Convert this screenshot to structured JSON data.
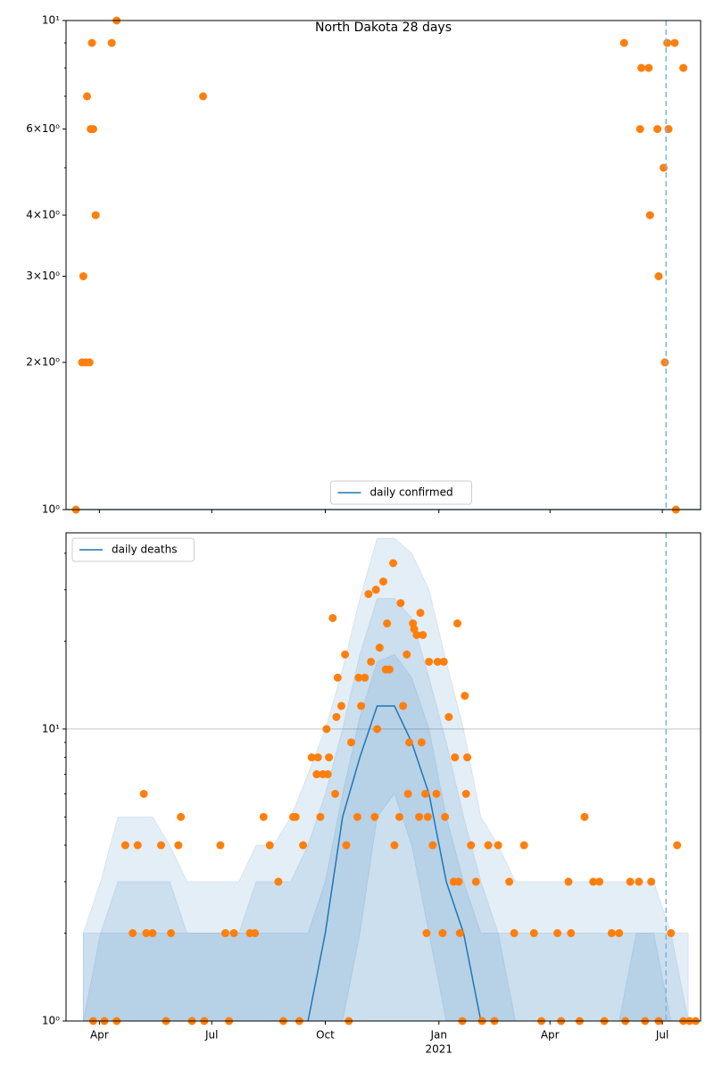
{
  "chart_data": [
    {
      "type": "line",
      "title": "North Dakota 28 days",
      "yscale": "log",
      "grid": false,
      "legend": "lower center",
      "xlim": [
        "2020-03-05",
        "2021-08-01"
      ],
      "ylim": [
        1,
        10
      ],
      "xticks": [
        "2020-04-01",
        "2020-07-01",
        "2020-10-01",
        "2021-01-01",
        "2021-04-01",
        "2021-07-01"
      ],
      "yticks": [
        {
          "value": 1,
          "label": "10⁰"
        },
        {
          "value": 2,
          "label": "2×10⁰"
        },
        {
          "value": 3,
          "label": "3×10⁰"
        },
        {
          "value": 4,
          "label": "4×10⁰"
        },
        {
          "value": 6,
          "label": "6×10⁰"
        },
        {
          "value": 10,
          "label": "10¹"
        }
      ],
      "yminor": [
        5,
        7,
        8,
        9
      ],
      "vline": "2021-07-04",
      "vline_color": "#7fb2dc",
      "series": [
        {
          "name": "daily confirmed",
          "color": "#1f77b4",
          "x": [
            "2020-03-05",
            "2021-08-01"
          ],
          "values": [
            1,
            1
          ]
        }
      ],
      "scatter": {
        "color": "#ff7f0e",
        "x": [
          "2020-03-13",
          "2020-03-18",
          "2020-03-19",
          "2020-03-21",
          "2020-03-22",
          "2020-03-24",
          "2020-03-25",
          "2020-03-26",
          "2020-03-27",
          "2020-03-29",
          "2020-04-11",
          "2020-04-15",
          "2020-06-24",
          "2021-05-31",
          "2021-06-13",
          "2021-06-14",
          "2021-06-20",
          "2021-06-21",
          "2021-06-27",
          "2021-06-28",
          "2021-07-02",
          "2021-07-03",
          "2021-07-05",
          "2021-07-06",
          "2021-07-11",
          "2021-07-12",
          "2021-07-18"
        ],
        "values": [
          1,
          2,
          3,
          2,
          7,
          2,
          6,
          9,
          6,
          4,
          9,
          10,
          7,
          9,
          6,
          8,
          8,
          4,
          6,
          3,
          5,
          2,
          9,
          6,
          9,
          1,
          8
        ]
      }
    },
    {
      "type": "line",
      "yscale": "log",
      "grid": true,
      "legend": "upper left",
      "xlim": [
        "2020-03-05",
        "2021-08-01"
      ],
      "ylim": [
        1,
        47
      ],
      "xticks": [
        {
          "value": "2020-04-01",
          "label": "Apr"
        },
        {
          "value": "2020-07-01",
          "label": "Jul"
        },
        {
          "value": "2020-10-01",
          "label": "Oct"
        },
        {
          "value": "2021-01-01",
          "label": "Jan",
          "label2": "2021"
        },
        {
          "value": "2021-04-01",
          "label": "Apr"
        },
        {
          "value": "2021-07-01",
          "label": "Jul"
        }
      ],
      "yticks": [
        {
          "value": 1,
          "label": "10⁰"
        },
        {
          "value": 10,
          "label": "10¹"
        }
      ],
      "yminor": [
        2,
        3,
        4,
        5,
        6,
        7,
        8,
        9,
        20,
        30,
        40
      ],
      "vline": "2021-07-04",
      "vline_color": "#7fb2dc",
      "band_x": [
        "2020-03-19",
        "2020-04-02",
        "2020-04-16",
        "2020-04-30",
        "2020-05-14",
        "2020-05-28",
        "2020-06-11",
        "2020-06-25",
        "2020-07-09",
        "2020-07-23",
        "2020-08-06",
        "2020-08-20",
        "2020-09-03",
        "2020-09-17",
        "2020-10-01",
        "2020-10-15",
        "2020-10-29",
        "2020-11-12",
        "2020-11-26",
        "2020-12-10",
        "2020-12-24",
        "2021-01-07",
        "2021-01-21",
        "2021-02-04",
        "2021-02-18",
        "2021-03-04",
        "2021-03-18",
        "2021-04-01",
        "2021-04-15",
        "2021-04-29",
        "2021-05-13",
        "2021-05-27",
        "2021-06-10",
        "2021-06-24",
        "2021-07-08",
        "2021-07-22"
      ],
      "bands": [
        {
          "color": "#1f77b4",
          "lower": [
            1,
            1,
            1,
            1,
            1,
            1,
            1,
            1,
            1,
            1,
            1,
            1,
            1,
            1,
            1,
            1,
            1,
            1,
            1,
            1,
            1,
            1,
            1,
            1,
            1,
            1,
            1,
            1,
            1,
            1,
            1,
            1,
            1,
            1,
            1,
            1
          ],
          "upper": [
            2,
            3,
            5,
            5,
            5,
            4,
            3,
            3,
            3,
            3,
            4,
            4,
            5,
            7,
            10,
            16,
            28,
            45,
            45,
            40,
            30,
            17,
            10,
            5,
            4,
            3,
            3,
            3,
            3,
            3,
            3,
            3,
            3,
            3,
            2,
            2
          ]
        },
        {
          "color": "#1f77b4",
          "lower": [
            1,
            1,
            1,
            1,
            1,
            1,
            1,
            1,
            1,
            1,
            1,
            1,
            1,
            1,
            1,
            1,
            1,
            1,
            1,
            1,
            1,
            1,
            1,
            1,
            1,
            1,
            1,
            1,
            1,
            1,
            1,
            1,
            1,
            1,
            1,
            1
          ],
          "upper": [
            2,
            2,
            3,
            3,
            3,
            3,
            2,
            2,
            2,
            2,
            3,
            3,
            3,
            4,
            6,
            10,
            18,
            28,
            28,
            24,
            15,
            9,
            5,
            3,
            2,
            2,
            2,
            2,
            2,
            2,
            2,
            2,
            2,
            2,
            2,
            1
          ]
        },
        {
          "color": "#1f77b4",
          "lower": [
            1,
            1,
            1,
            1,
            1,
            1,
            1,
            1,
            1,
            1,
            1,
            1,
            1,
            1,
            1,
            1,
            2,
            5,
            6,
            4,
            2,
            1,
            1,
            1,
            1,
            1,
            1,
            1,
            1,
            1,
            1,
            1,
            1,
            1,
            1,
            1
          ],
          "upper": [
            1,
            2,
            2,
            2,
            2,
            2,
            2,
            2,
            2,
            2,
            2,
            2,
            2,
            2,
            3,
            6,
            11,
            17,
            18,
            15,
            10,
            5,
            3,
            2,
            2,
            1,
            1,
            1,
            1,
            1,
            1,
            1,
            2,
            2,
            1,
            1
          ]
        }
      ],
      "series": [
        {
          "name": "daily deaths",
          "color": "#1f77b4",
          "x": [
            "2020-03-19",
            "2020-04-02",
            "2020-04-16",
            "2020-04-30",
            "2020-05-14",
            "2020-05-28",
            "2020-06-11",
            "2020-06-25",
            "2020-07-09",
            "2020-07-23",
            "2020-08-06",
            "2020-08-20",
            "2020-09-03",
            "2020-09-17",
            "2020-10-01",
            "2020-10-15",
            "2020-10-29",
            "2020-11-12",
            "2020-11-26",
            "2020-12-10",
            "2020-12-24",
            "2021-01-07",
            "2021-01-21",
            "2021-02-04",
            "2021-02-18",
            "2021-03-04",
            "2021-03-18",
            "2021-04-01",
            "2021-04-15",
            "2021-04-29",
            "2021-05-13",
            "2021-05-27",
            "2021-06-10",
            "2021-06-24",
            "2021-07-08",
            "2021-07-22"
          ],
          "values": [
            null,
            null,
            null,
            null,
            null,
            null,
            null,
            null,
            null,
            null,
            null,
            null,
            null,
            1,
            2,
            5,
            8,
            12,
            12,
            9,
            6,
            3,
            2,
            1,
            null,
            null,
            null,
            null,
            null,
            null,
            null,
            null,
            null,
            null,
            null,
            null
          ]
        }
      ],
      "scatter": {
        "color": "#ff7f0e",
        "x": [
          "2020-03-27",
          "2020-04-05",
          "2020-04-15",
          "2020-04-22",
          "2020-04-28",
          "2020-05-02",
          "2020-05-07",
          "2020-05-09",
          "2020-05-14",
          "2020-05-21",
          "2020-05-25",
          "2020-05-29",
          "2020-06-04",
          "2020-06-06",
          "2020-06-15",
          "2020-06-25",
          "2020-07-08",
          "2020-07-12",
          "2020-07-15",
          "2020-07-19",
          "2020-08-01",
          "2020-08-05",
          "2020-08-12",
          "2020-08-17",
          "2020-08-24",
          "2020-08-28",
          "2020-09-05",
          "2020-09-07",
          "2020-09-10",
          "2020-09-13",
          "2020-09-20",
          "2020-09-24",
          "2020-09-25",
          "2020-09-27",
          "2020-09-29",
          "2020-10-02",
          "2020-10-03",
          "2020-10-04",
          "2020-10-07",
          "2020-10-09",
          "2020-10-10",
          "2020-10-11",
          "2020-10-14",
          "2020-10-17",
          "2020-10-18",
          "2020-10-20",
          "2020-10-22",
          "2020-10-27",
          "2020-10-28",
          "2020-10-30",
          "2020-11-02",
          "2020-11-05",
          "2020-11-07",
          "2020-11-10",
          "2020-11-11",
          "2020-11-12",
          "2020-11-14",
          "2020-11-17",
          "2020-11-19",
          "2020-11-20",
          "2020-11-22",
          "2020-11-25",
          "2020-11-26",
          "2020-11-30",
          "2020-12-01",
          "2020-12-03",
          "2020-12-06",
          "2020-12-07",
          "2020-12-08",
          "2020-12-11",
          "2020-12-12",
          "2020-12-14",
          "2020-12-16",
          "2020-12-17",
          "2020-12-18",
          "2020-12-19",
          "2020-12-21",
          "2020-12-22",
          "2020-12-23",
          "2020-12-24",
          "2020-12-27",
          "2020-12-30",
          "2020-12-31",
          "2021-01-04",
          "2021-01-05",
          "2021-01-06",
          "2021-01-09",
          "2021-01-13",
          "2021-01-14",
          "2021-01-16",
          "2021-01-17",
          "2021-01-18",
          "2021-01-20",
          "2021-01-22",
          "2021-01-23",
          "2021-01-24",
          "2021-01-27",
          "2021-01-31",
          "2021-02-05",
          "2021-02-10",
          "2021-02-15",
          "2021-02-18",
          "2021-02-27",
          "2021-03-03",
          "2021-03-11",
          "2021-03-19",
          "2021-03-25",
          "2021-04-07",
          "2021-04-10",
          "2021-04-16",
          "2021-04-18",
          "2021-04-25",
          "2021-04-29",
          "2021-05-06",
          "2021-05-11",
          "2021-05-15",
          "2021-05-21",
          "2021-05-27",
          "2021-06-01",
          "2021-06-05",
          "2021-06-12",
          "2021-06-17",
          "2021-06-22",
          "2021-06-28",
          "2021-07-08",
          "2021-07-13",
          "2021-07-18",
          "2021-07-23",
          "2021-07-28"
        ],
        "values": [
          1,
          1,
          1,
          4,
          2,
          4,
          6,
          2,
          2,
          4,
          1,
          2,
          4,
          5,
          1,
          1,
          4,
          2,
          1,
          2,
          2,
          2,
          5,
          4,
          3,
          1,
          5,
          5,
          1,
          4,
          8,
          7,
          8,
          5,
          7,
          10,
          7,
          8,
          24,
          6,
          11,
          15,
          12,
          18,
          4,
          1,
          9,
          5,
          15,
          12,
          15,
          29,
          17,
          5,
          30,
          10,
          19,
          32,
          16,
          23,
          16,
          37,
          4,
          5,
          27,
          12,
          18,
          6,
          9,
          23,
          22,
          21,
          5,
          25,
          9,
          21,
          6,
          2,
          5,
          17,
          4,
          6,
          17,
          2,
          17,
          5,
          11,
          3,
          8,
          23,
          3,
          2,
          1,
          13,
          6,
          8,
          4,
          3,
          1,
          4,
          1,
          4,
          3,
          2,
          4,
          2,
          1,
          2,
          1,
          3,
          2,
          1,
          5,
          3,
          3,
          1,
          2,
          2,
          1,
          3,
          3,
          1,
          3,
          1,
          2,
          4,
          1,
          1,
          1
        ]
      }
    }
  ]
}
